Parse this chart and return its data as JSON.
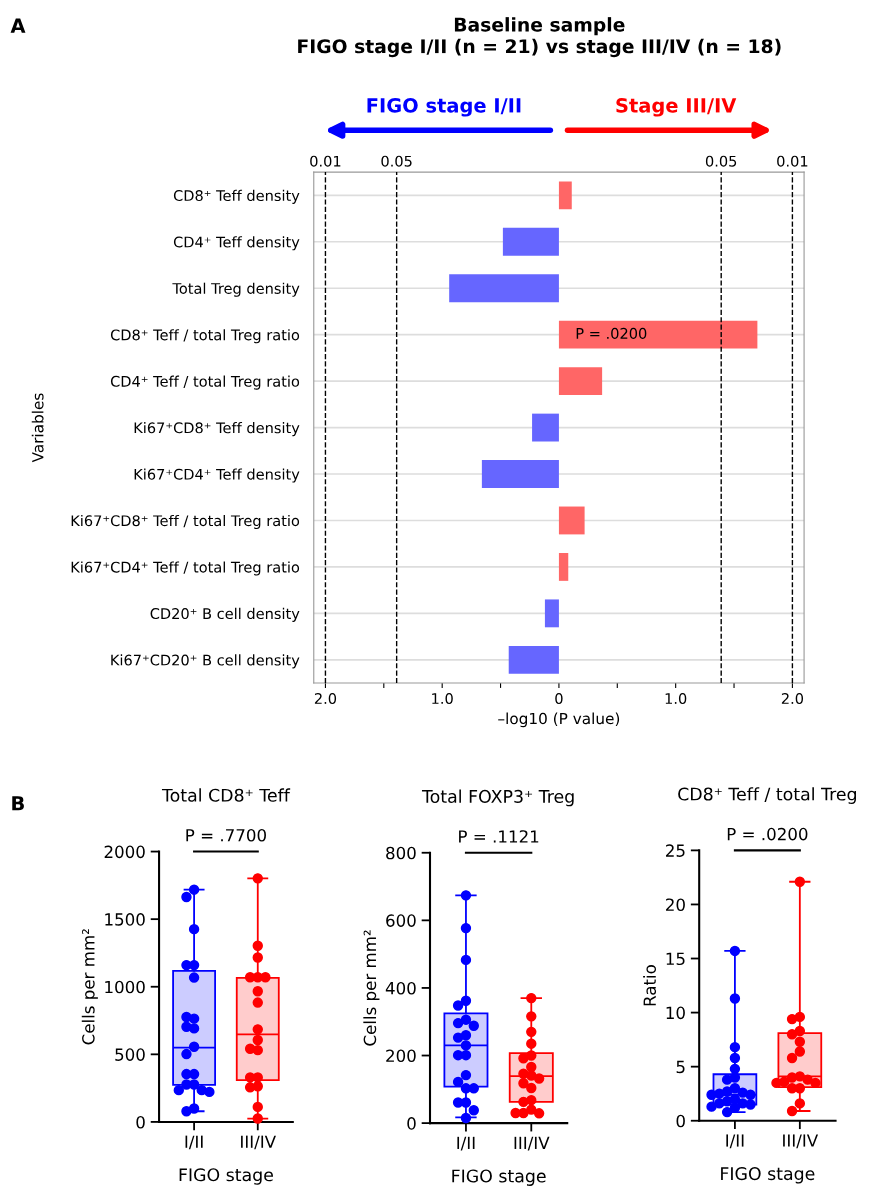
{
  "chart_data": [
    {
      "type": "bar",
      "orientation": "horizontal",
      "title": "Baseline sample\nFIGO stage I/II (n = 21) vs stage III/IV (n = 18)",
      "xlabel": "–log10 (P value)",
      "ylabel": "Variables",
      "categories": [
        "CD8⁺ Teff density",
        "CD4⁺ Teff density",
        "Total Treg density",
        "CD8⁺ Teff / total Treg ratio",
        "CD4⁺ Teff / total Treg ratio",
        "Ki67⁺CD8⁺ Teff density",
        "Ki67⁺CD4⁺ Teff density",
        "Ki67⁺CD8⁺ Teff / total Treg ratio",
        "Ki67⁺CD4⁺ Teff / total Treg ratio",
        "CD20⁺ B cell density",
        "Ki67⁺CD20⁺ B cell density"
      ],
      "values": [
        0.11,
        -0.48,
        -0.94,
        1.7,
        0.37,
        -0.23,
        -0.66,
        0.22,
        0.08,
        -0.12,
        -0.43
      ],
      "colors": [
        "#ff6666",
        "#6666ff",
        "#6666ff",
        "#ff6666",
        "#ff6666",
        "#6666ff",
        "#6666ff",
        "#ff6666",
        "#ff6666",
        "#6666ff",
        "#6666ff"
      ],
      "xlim": [
        -2.1,
        2.1
      ],
      "xticks": [
        {
          "value": -2,
          "label": "2.0"
        },
        {
          "value": -1.5,
          "label": null
        },
        {
          "value": -1,
          "label": "1.0"
        },
        {
          "value": -0.5,
          "label": null
        },
        0,
        {
          "value": 0.5,
          "label": null
        },
        {
          "value": 1,
          "label": "1.0"
        },
        {
          "value": 1.5,
          "label": null
        },
        {
          "value": 2,
          "label": "2.0"
        }
      ],
      "ref_lines": [
        {
          "axis": "x",
          "value": -2,
          "color": "#000000",
          "line_style": "dashed"
        },
        {
          "axis": "x",
          "value": -1.39,
          "color": "#000000",
          "line_style": "dashed"
        },
        {
          "axis": "x",
          "value": 1.39,
          "color": "#000000",
          "line_style": "dashed"
        },
        {
          "axis": "x",
          "value": 2,
          "color": "#000000",
          "line_style": "dashed"
        }
      ],
      "grid": "y",
      "annotations": [
        "A",
        "B",
        "FIGO stage I/II",
        "Stage III/IV",
        "P = .0200",
        "0.01",
        "0.05",
        "0.05",
        "0.01"
      ]
    },
    {
      "type": "box",
      "title": "Total CD8⁺ Teff",
      "xlabel": "FIGO stage",
      "ylabel": "Cells per mm²",
      "categories": [
        "I/II",
        "III/IV"
      ],
      "ylim": [
        0,
        2000
      ],
      "yticks": [
        0,
        500,
        1000,
        1500,
        2000
      ],
      "colors": [
        "#0000ff",
        "#ff0000"
      ],
      "marker": "circle",
      "boxes": [
        {
          "low": 79,
          "q1": 274,
          "median": 550,
          "q3": 1117,
          "high": 1718
        },
        {
          "low": 25,
          "q1": 309,
          "median": 648,
          "q3": 1066,
          "high": 1802
        }
      ],
      "series": [
        {
          "type": "scatter",
          "color": "#0000ff",
          "x": [
            "I/II",
            "I/II",
            "I/II",
            "I/II",
            "I/II",
            "I/II",
            "I/II",
            "I/II",
            "I/II",
            "I/II",
            "I/II",
            "I/II",
            "I/II",
            "I/II",
            "I/II",
            "I/II",
            "I/II",
            "I/II",
            "I/II",
            "I/II",
            "I/II"
          ],
          "values": [
            1718,
            1664,
            1426,
            1160,
            1160,
            1068,
            764,
            776,
            692,
            704,
            556,
            502,
            354,
            354,
            277,
            277,
            235,
            235,
            222,
            99,
            79
          ]
        },
        {
          "type": "scatter",
          "color": "#ff0000",
          "x": [
            "III/IV",
            "III/IV",
            "III/IV",
            "III/IV",
            "III/IV",
            "III/IV",
            "III/IV",
            "III/IV",
            "III/IV",
            "III/IV",
            "III/IV",
            "III/IV",
            "III/IV",
            "III/IV",
            "III/IV",
            "III/IV",
            "III/IV",
            "III/IV"
          ],
          "values": [
            1802,
            1303,
            1216,
            1070,
            1070,
            1070,
            967,
            883,
            685,
            606,
            531,
            541,
            329,
            329,
            264,
            256,
            111,
            25
          ]
        }
      ],
      "annotations": [
        "P = .7700"
      ]
    },
    {
      "type": "box",
      "title": "Total FOXP3⁺ Treg",
      "xlabel": "FIGO stage",
      "ylabel": "Cells per mm²",
      "categories": [
        "I/II",
        "III/IV"
      ],
      "ylim": [
        0,
        800
      ],
      "yticks": [
        0,
        200,
        400,
        600,
        800
      ],
      "colors": [
        "#0000ff",
        "#ff0000"
      ],
      "marker": "circle",
      "boxes": [
        {
          "low": 17,
          "q1": 108,
          "median": 230,
          "q3": 325,
          "high": 674
        },
        {
          "low": 33,
          "q1": 63,
          "median": 139,
          "q3": 207,
          "high": 370
        }
      ],
      "series": [
        {
          "type": "scatter",
          "color": "#0000ff",
          "x": [
            "I/II",
            "I/II",
            "I/II",
            "I/II",
            "I/II",
            "I/II",
            "I/II",
            "I/II",
            "I/II",
            "I/II",
            "I/II",
            "I/II",
            "I/II",
            "I/II",
            "I/II",
            "I/II",
            "I/II",
            "I/II",
            "I/II",
            "I/II",
            "I/II"
          ],
          "values": [
            674,
            577,
            483,
            362,
            348,
            306,
            296,
            288,
            260,
            253,
            230,
            201,
            201,
            142,
            122,
            103,
            103,
            61,
            61,
            38,
            15
          ]
        },
        {
          "type": "scatter",
          "color": "#ff0000",
          "x": [
            "III/IV",
            "III/IV",
            "III/IV",
            "III/IV",
            "III/IV",
            "III/IV",
            "III/IV",
            "III/IV",
            "III/IV",
            "III/IV",
            "III/IV",
            "III/IV",
            "III/IV",
            "III/IV",
            "III/IV",
            "III/IV",
            "III/IV",
            "III/IV"
          ],
          "values": [
            370,
            316,
            270,
            235,
            200,
            192,
            166,
            146,
            141,
            132,
            118,
            104,
            68,
            63,
            40,
            30,
            29,
            30
          ]
        }
      ],
      "annotations": [
        "P = .1121"
      ]
    },
    {
      "type": "box",
      "title": "CD8⁺ Teff / total Treg",
      "xlabel": "FIGO stage",
      "ylabel": "Ratio",
      "categories": [
        "I/II",
        "III/IV"
      ],
      "ylim": [
        0,
        25
      ],
      "yticks": [
        0,
        5,
        10,
        15,
        20,
        25
      ],
      "colors": [
        "#0000ff",
        "#ff0000"
      ],
      "marker": "circle",
      "boxes": [
        {
          "low": 0.8,
          "q1": 1.5,
          "median": 2.4,
          "q3": 4.3,
          "high": 15.7
        },
        {
          "low": 0.9,
          "q1": 3.1,
          "median": 4.1,
          "q3": 8.1,
          "high": 22.1
        }
      ],
      "series": [
        {
          "type": "scatter",
          "color": "#0000ff",
          "x": [
            "I/II",
            "I/II",
            "I/II",
            "I/II",
            "I/II",
            "I/II",
            "I/II",
            "I/II",
            "I/II",
            "I/II",
            "I/II",
            "I/II",
            "I/II",
            "I/II",
            "I/II",
            "I/II",
            "I/II",
            "I/II",
            "I/II",
            "I/II",
            "I/II"
          ],
          "values": [
            15.7,
            11.3,
            6.8,
            5.8,
            4.8,
            4.0,
            3.8,
            3.0,
            2.7,
            2.6,
            2.5,
            2.4,
            2.4,
            2.0,
            1.8,
            1.6,
            1.6,
            1.5,
            1.3,
            1.2,
            0.8
          ]
        },
        {
          "type": "scatter",
          "color": "#ff0000",
          "x": [
            "III/IV",
            "III/IV",
            "III/IV",
            "III/IV",
            "III/IV",
            "III/IV",
            "III/IV",
            "III/IV",
            "III/IV",
            "III/IV",
            "III/IV",
            "III/IV",
            "III/IV",
            "III/IV",
            "III/IV",
            "III/IV",
            "III/IV",
            "III/IV"
          ],
          "values": [
            22.1,
            9.6,
            9.4,
            8.3,
            8.0,
            7.3,
            6.4,
            5.8,
            4.1,
            4.0,
            3.8,
            3.6,
            3.5,
            3.5,
            3.0,
            3.0,
            1.6,
            0.9
          ]
        }
      ],
      "annotations": [
        "P = .0200"
      ]
    }
  ]
}
